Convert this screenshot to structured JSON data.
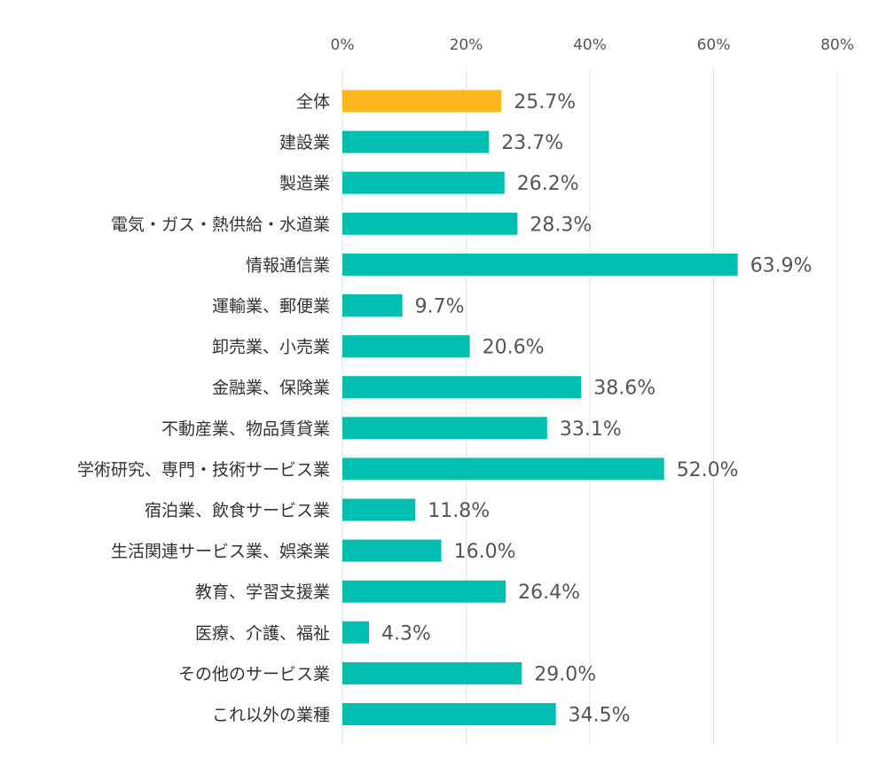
{
  "chart_data": {
    "type": "bar",
    "orientation": "horizontal",
    "title": "",
    "xlabel": "",
    "ylabel": "",
    "xlim": [
      0,
      80
    ],
    "ticks": [
      0,
      20,
      40,
      60,
      80
    ],
    "tick_suffix": "%",
    "tick_position": "top",
    "grid": true,
    "legend": "none",
    "colors": {
      "highlight": "#fbb81c",
      "bar": "#00bfb0",
      "grid": "#e6e6e6"
    },
    "categories": [
      "全体",
      "建設業",
      "製造業",
      "電気・ガス・熱供給・水道業",
      "情報通信業",
      "運輸業、郵便業",
      "卸売業、小売業",
      "金融業、保険業",
      "不動産業、物品賃貸業",
      "学術研究、専門・技術サービス業",
      "宿泊業、飲食サービス業",
      "生活関連サービス業、娯楽業",
      "教育、学習支援業",
      "医療、介護、福祉",
      "その他のサービス業",
      "これ以外の業種"
    ],
    "values": [
      25.7,
      23.7,
      26.2,
      28.3,
      63.9,
      9.7,
      20.6,
      38.6,
      33.1,
      52.0,
      11.8,
      16.0,
      26.4,
      4.3,
      29.0,
      34.5
    ],
    "value_labels": [
      "25.7%",
      "23.7%",
      "26.2%",
      "28.3%",
      "63.9%",
      "9.7%",
      "20.6%",
      "38.6%",
      "33.1%",
      "52.0%",
      "11.8%",
      "16.0%",
      "26.4%",
      "4.3%",
      "29.0%",
      "34.5%"
    ],
    "highlight_index": 0
  }
}
